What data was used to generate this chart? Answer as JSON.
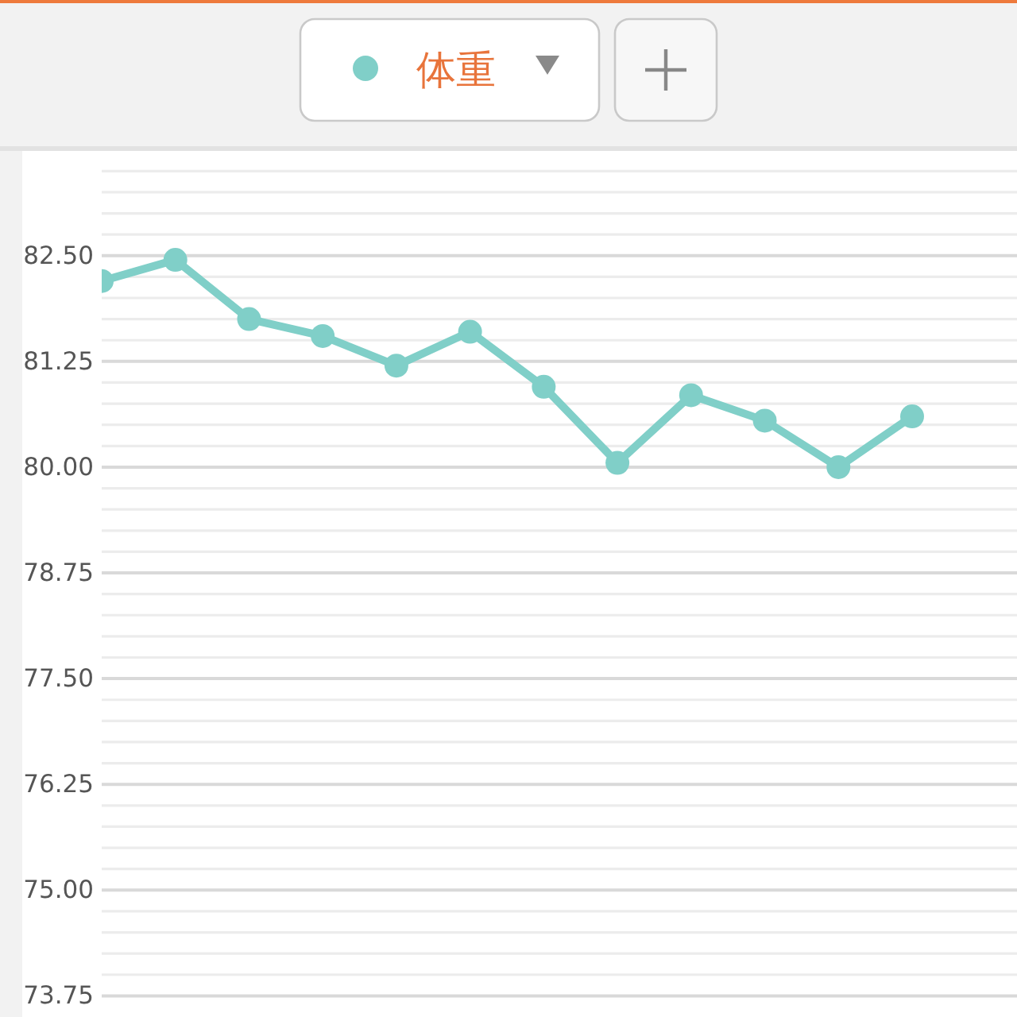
{
  "chart_data": {
    "type": "line",
    "categories": [
      null,
      null,
      null,
      null,
      null,
      null,
      null,
      null,
      null,
      null,
      null,
      null
    ],
    "series": [
      {
        "name": "体重",
        "color": "#80cfc8",
        "values": [
          82.2,
          82.45,
          81.75,
          81.55,
          81.2,
          81.6,
          80.95,
          80.05,
          80.85,
          80.55,
          80.0,
          80.6
        ]
      }
    ],
    "ylim": [
      73.5,
      83.7
    ],
    "yticks": [
      {
        "value": 73.75,
        "label": "73.75"
      },
      {
        "value": 74,
        "label": null
      },
      {
        "value": 74.25,
        "label": null
      },
      {
        "value": 74.5,
        "label": null
      },
      {
        "value": 74.75,
        "label": null
      },
      {
        "value": 75,
        "label": "75.00"
      },
      {
        "value": 75.25,
        "label": null
      },
      {
        "value": 75.5,
        "label": null
      },
      {
        "value": 75.75,
        "label": null
      },
      {
        "value": 76,
        "label": null
      },
      {
        "value": 76.25,
        "label": "76.25"
      },
      {
        "value": 76.5,
        "label": null
      },
      {
        "value": 76.75,
        "label": null
      },
      {
        "value": 77,
        "label": null
      },
      {
        "value": 77.25,
        "label": null
      },
      {
        "value": 77.5,
        "label": "77.50"
      },
      {
        "value": 77.75,
        "label": null
      },
      {
        "value": 78,
        "label": null
      },
      {
        "value": 78.25,
        "label": null
      },
      {
        "value": 78.5,
        "label": null
      },
      {
        "value": 78.75,
        "label": "78.75"
      },
      {
        "value": 79,
        "label": null
      },
      {
        "value": 79.25,
        "label": null
      },
      {
        "value": 79.5,
        "label": null
      },
      {
        "value": 79.75,
        "label": null
      },
      {
        "value": 80,
        "label": "80.00"
      },
      {
        "value": 80.25,
        "label": null
      },
      {
        "value": 80.5,
        "label": null
      },
      {
        "value": 80.75,
        "label": null
      },
      {
        "value": 81,
        "label": null
      },
      {
        "value": 81.25,
        "label": "81.25"
      },
      {
        "value": 81.5,
        "label": null
      },
      {
        "value": 81.75,
        "label": null
      },
      {
        "value": 82,
        "label": null
      },
      {
        "value": 82.25,
        "label": null
      },
      {
        "value": 82.5,
        "label": "82.50"
      },
      {
        "value": 82.75,
        "label": null
      },
      {
        "value": 83,
        "label": null
      },
      {
        "value": 83.25,
        "label": null
      },
      {
        "value": 83.5,
        "label": null
      }
    ],
    "tick_labels": "y",
    "grid": "y",
    "legend": "top",
    "marker": "circle",
    "line_style": "solid"
  }
}
